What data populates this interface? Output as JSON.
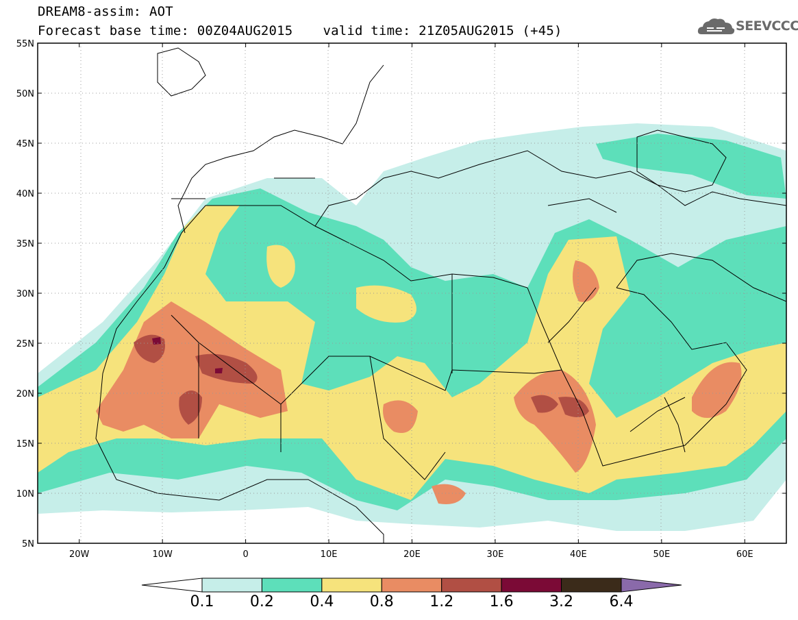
{
  "header": {
    "title": "DREAM8-assim: AOT",
    "base_time": "Forecast base time: 00Z04AUG2015",
    "valid_time": "valid time: 21Z05AUG2015 (+45)"
  },
  "logo": {
    "text": "SEEVCCC",
    "icon": "cloud-icon"
  },
  "map": {
    "lon_range": [
      -25,
      65
    ],
    "lat_range": [
      5,
      55
    ],
    "lat_ticks": [
      "5N",
      "10N",
      "15N",
      "20N",
      "25N",
      "30N",
      "35N",
      "40N",
      "45N",
      "50N",
      "55N"
    ],
    "lon_ticks": [
      "20W",
      "10W",
      "0",
      "10E",
      "20E",
      "30E",
      "40E",
      "50E",
      "60E"
    ],
    "grid": "dotted"
  },
  "colorbar": {
    "levels": [
      "0.1",
      "0.2",
      "0.4",
      "0.8",
      "1.2",
      "1.6",
      "3.2",
      "6.4"
    ],
    "colors": [
      "#ffffff",
      "#c6eee9",
      "#5ddfba",
      "#f6e37c",
      "#e98c63",
      "#b14f44",
      "#7b0a36",
      "#3b2b1a",
      "#8a6aaa"
    ]
  }
}
